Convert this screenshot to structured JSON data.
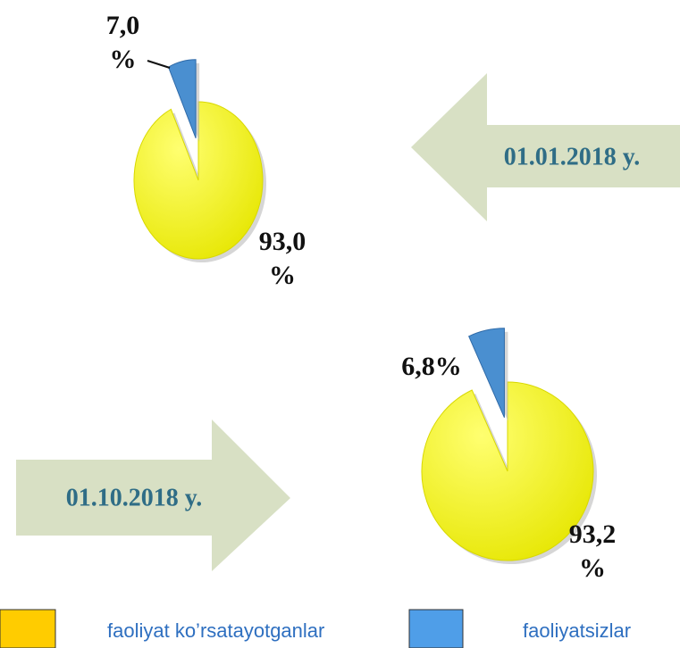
{
  "chart_data": [
    {
      "type": "pie",
      "title": "01.01.2018 y.",
      "categories": [
        "faoliyat ko’rsatayotganlar",
        "faoliyatsizlar"
      ],
      "values": [
        93.0,
        7.0
      ],
      "value_labels": [
        "93,0 %",
        "7,0 %"
      ],
      "colors": [
        "#f2f200",
        "#4a8fd0"
      ]
    },
    {
      "type": "pie",
      "title": "01.10.2018 y.",
      "categories": [
        "faoliyat ko’rsatayotganlar",
        "faoliyatsizlar"
      ],
      "values": [
        93.2,
        6.8
      ],
      "value_labels": [
        "93,2 %",
        "6,8%"
      ],
      "colors": [
        "#f2f200",
        "#4a8fd0"
      ]
    }
  ],
  "legend": {
    "colors": [
      "#ffcc00",
      "#4f9ee8"
    ]
  }
}
